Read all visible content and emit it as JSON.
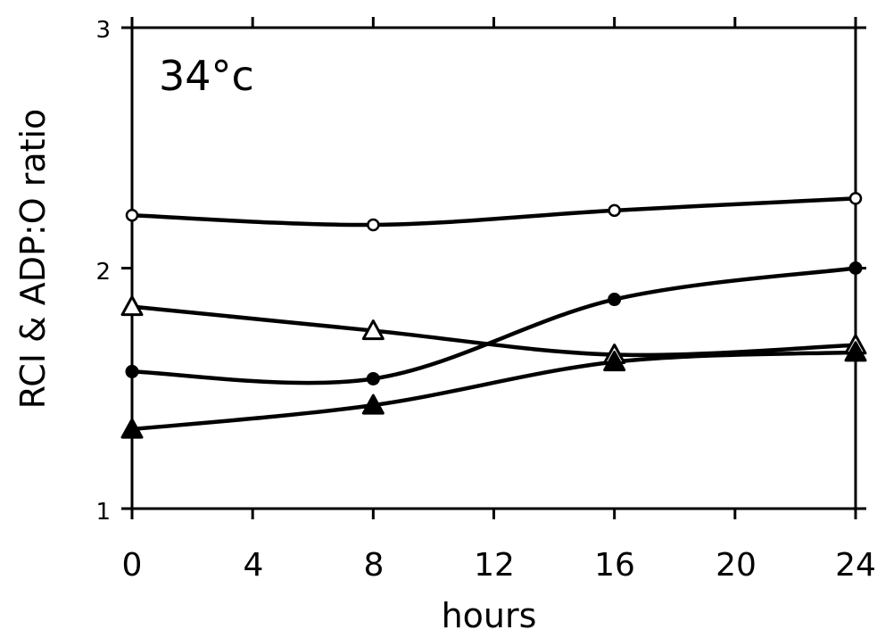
{
  "chart_data": {
    "type": "line",
    "annotation": "34°c",
    "xlabel": "hours",
    "ylabel": "RCI & ADP:O ratio",
    "xlim": [
      0,
      24
    ],
    "ylim": [
      1,
      3
    ],
    "x_ticks": [
      "0",
      "4",
      "8",
      "12",
      "16",
      "20",
      "24"
    ],
    "y_ticks": [
      "1",
      "2",
      "3"
    ],
    "grid": false,
    "legend": "none",
    "x": [
      0,
      8,
      16,
      24
    ],
    "series": [
      {
        "marker": "open-circle",
        "values": [
          2.22,
          2.18,
          2.24,
          2.29
        ]
      },
      {
        "marker": "filled-circle",
        "values": [
          1.57,
          1.54,
          1.87,
          2.0
        ]
      },
      {
        "marker": "open-triangle",
        "values": [
          1.84,
          1.74,
          1.64,
          1.68
        ]
      },
      {
        "marker": "filled-triangle",
        "values": [
          1.33,
          1.43,
          1.61,
          1.65
        ]
      }
    ]
  }
}
